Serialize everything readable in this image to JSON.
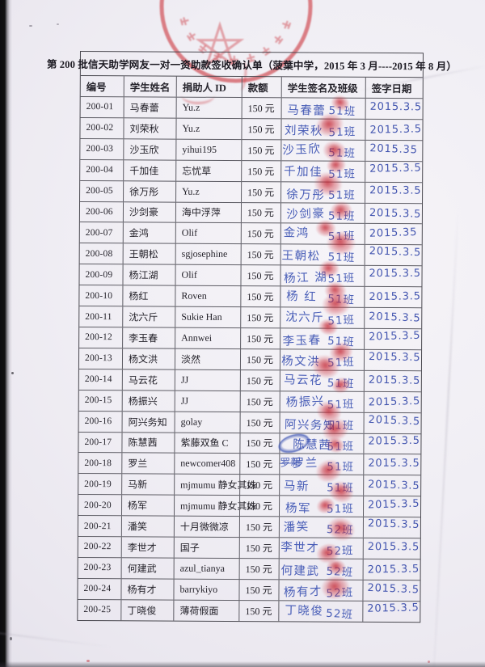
{
  "colors": {
    "paper": "#f0eef4",
    "seal_red": "#cf4850",
    "fingerprint_red": "#cc2c38",
    "ink_blue": "#3a51b2",
    "line_gray": "#5d5c64"
  },
  "seal": {
    "icon": "official-round-seal-with-star"
  },
  "document": {
    "title": "第 200 批信天助学网友一对一资助款签收确认单（菠葉中学，2015 年 3 月----2015 年 8 月）",
    "columns": [
      "编号",
      "学生姓名",
      "捐助人 ID",
      "款额",
      "学生签名及班级",
      "签字日期"
    ],
    "rows": [
      {
        "id": "200-01",
        "name": "马春蕾",
        "donor": "Yu.z",
        "amount": "150 元",
        "signature": "马春蕾",
        "class_label": "51班",
        "date": "2015.3.5"
      },
      {
        "id": "200-02",
        "name": "刘荣秋",
        "donor": "Yu.z",
        "amount": "150 元",
        "signature": "刘荣秋",
        "class_label": "51班",
        "date": "2015.3.5"
      },
      {
        "id": "200-03",
        "name": "沙玉欣",
        "donor": "yihui195",
        "amount": "150 元",
        "signature": "沙玉欣",
        "class_label": "51班",
        "date": "2015.35"
      },
      {
        "id": "200-04",
        "name": "千加佳",
        "donor": "忘忧草",
        "amount": "150 元",
        "signature": "千加佳",
        "class_label": "51班",
        "date": "2015.3.5"
      },
      {
        "id": "200-05",
        "name": "徐万彤",
        "donor": "Yu.z",
        "amount": "150 元",
        "signature": "徐万彤",
        "class_label": "51班",
        "date": "2015.3.5"
      },
      {
        "id": "200-06",
        "name": "沙剑豪",
        "donor": "海中浮萍",
        "amount": "150 元",
        "signature": "沙剑豪",
        "class_label": "51班",
        "date": "2015.3.5"
      },
      {
        "id": "200-07",
        "name": "金鸿",
        "donor": "Olif",
        "amount": "150 元",
        "signature": "金鸿",
        "class_label": "51班",
        "date": "2015.35"
      },
      {
        "id": "200-08",
        "name": "王朝松",
        "donor": "sgjosephine",
        "amount": "150 元",
        "signature": "王朝松",
        "class_label": "51班",
        "date": "2015.3.5"
      },
      {
        "id": "200-09",
        "name": "杨江湖",
        "donor": "Olif",
        "amount": "150 元",
        "signature": "杨江 湖",
        "class_label": "51班",
        "date": "2015.3.5"
      },
      {
        "id": "200-10",
        "name": "杨红",
        "donor": "Roven",
        "amount": "150 元",
        "signature": "杨 红",
        "class_label": "51班",
        "date": "2015.3.5"
      },
      {
        "id": "200-11",
        "name": "沈六斤",
        "donor": "Sukie Han",
        "amount": "150 元",
        "signature": "沈六斤",
        "class_label": "51班",
        "date": "2015.3.5"
      },
      {
        "id": "200-12",
        "name": "李玉春",
        "donor": "Annwei",
        "amount": "150 元",
        "signature": "李玉春",
        "class_label": "51班",
        "date": "2015.3.5"
      },
      {
        "id": "200-13",
        "name": "杨文洪",
        "donor": "淡然",
        "amount": "150 元",
        "signature": "杨文洪",
        "class_label": "51班",
        "date": "2015.3.5"
      },
      {
        "id": "200-14",
        "name": "马云花",
        "donor": "JJ",
        "amount": "150 元",
        "signature": "马云花",
        "class_label": "51班",
        "date": "2015.3.5"
      },
      {
        "id": "200-15",
        "name": "杨振兴",
        "donor": "JJ",
        "amount": "150 元",
        "signature": "杨振兴",
        "class_label": "51班",
        "date": "2015.3.5"
      },
      {
        "id": "200-16",
        "name": "阿兴务知",
        "donor": "golay",
        "amount": "150 元",
        "signature": "阿兴务知",
        "class_label": "51班",
        "date": "2015.3.5"
      },
      {
        "id": "200-17",
        "name": "陈慧茜",
        "donor": "紫藤双鱼 C",
        "amount": "150 元",
        "signature": "陈慧茜",
        "class_label": "51班",
        "date": "2015.3.5",
        "overwritten": true
      },
      {
        "id": "200-18",
        "name": "罗兰",
        "donor": "newcomer408",
        "amount": "150 元",
        "signature": "罗兰",
        "class_label": "51班",
        "date": "2015.3.5",
        "struck": "罗新"
      },
      {
        "id": "200-19",
        "name": "马新",
        "donor": "mjmumu 静女其姝",
        "amount": "150 元",
        "signature": "马新",
        "class_label": "51班",
        "date": "2015.3.5"
      },
      {
        "id": "200-20",
        "name": "杨军",
        "donor": "mjmumu 静女其姝",
        "amount": "150 元",
        "signature": "杨军",
        "class_label": "51班",
        "date": "2015.3.5"
      },
      {
        "id": "200-21",
        "name": "潘笑",
        "donor": "十月微微凉",
        "amount": "150 元",
        "signature": "潘笑",
        "class_label": "52班",
        "date": "2015.3.5"
      },
      {
        "id": "200-22",
        "name": "李世才",
        "donor": "国子",
        "amount": "150 元",
        "signature": "李世才",
        "class_label": "52班",
        "date": "2015.3.5"
      },
      {
        "id": "200-23",
        "name": "何建武",
        "donor": "azul_tianya",
        "amount": "150 元",
        "signature": "何建武",
        "class_label": "52班",
        "date": "2015.3.5"
      },
      {
        "id": "200-24",
        "name": "杨有才",
        "donor": "barrykiyo",
        "amount": "150 元",
        "signature": "杨有才",
        "class_label": "52班",
        "date": "2015.3.5"
      },
      {
        "id": "200-25",
        "name": "丁晓俊",
        "donor": "薄荷假面",
        "amount": "150 元",
        "signature": "丁晓俊",
        "class_label": "52班",
        "date": "2015.3.5"
      }
    ]
  }
}
